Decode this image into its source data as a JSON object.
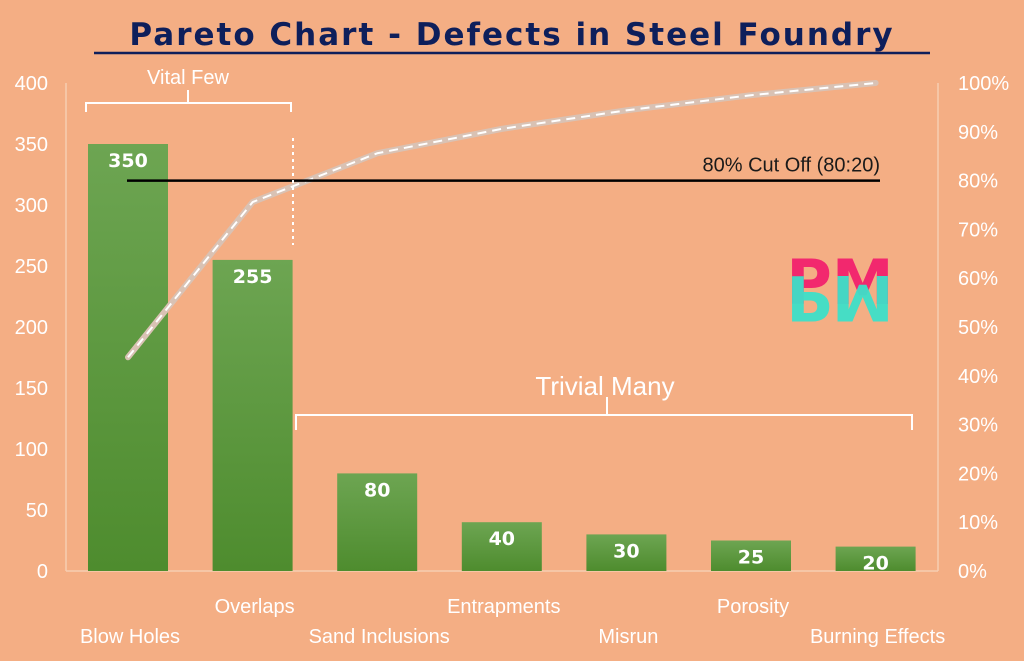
{
  "colors": {
    "background": "#F4AE84",
    "bar_fill_top": "#6DA552",
    "bar_fill_bottom": "#4E8C2E",
    "title": "#0E1F5B",
    "cumulative_line": "#D9C2B4",
    "cutoff_line": "#000000",
    "logo_top": "#F2286E",
    "logo_mirror": "#3DE0C9"
  },
  "logo": {
    "text": "PM"
  },
  "chart_data": {
    "type": "bar",
    "title": "Pareto Chart - Defects in Steel Foundry",
    "categories": [
      "Blow Holes",
      "Overlaps",
      "Sand Inclusions",
      "Entrapments",
      "Misrun",
      "Porosity",
      "Burning Effects"
    ],
    "values": [
      350,
      255,
      80,
      40,
      30,
      25,
      20
    ],
    "data_labels": [
      "350",
      "255",
      "80",
      "40",
      "30",
      "25",
      "20"
    ],
    "ylim": [
      0,
      400
    ],
    "yticks": [
      0,
      50,
      100,
      150,
      200,
      250,
      300,
      350,
      400
    ],
    "ytick_labels": [
      "0",
      "50",
      "100",
      "150",
      "200",
      "250",
      "300",
      "350",
      "400"
    ],
    "y2lim": [
      0,
      100
    ],
    "y2ticks": [
      0,
      10,
      20,
      30,
      40,
      50,
      60,
      70,
      80,
      90,
      100
    ],
    "y2tick_labels": [
      "0%",
      "10%",
      "20%",
      "30%",
      "40%",
      "50%",
      "60%",
      "70%",
      "80%",
      "90%",
      "100%"
    ],
    "cumulative_percent": [
      43.8,
      75.6,
      85.6,
      90.6,
      94.4,
      97.5,
      100
    ],
    "cutoff": {
      "value": 80,
      "label": "80% Cut Off (80:20)"
    },
    "annotations": {
      "vital_few": "Vital Few",
      "trivial_many": "Trivial Many"
    },
    "grid": false,
    "legend": "none"
  }
}
